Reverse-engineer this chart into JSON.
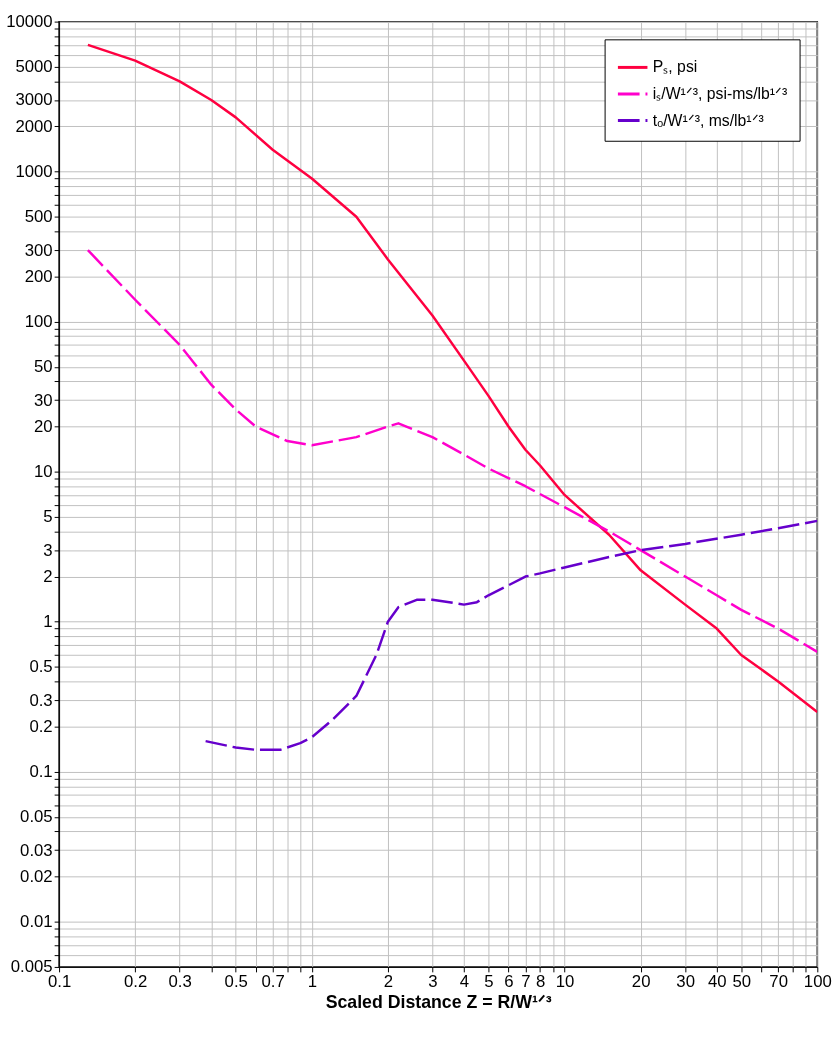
{
  "chart_data": {
    "type": "line",
    "xlabel": "Scaled Distance Z = R/W¹ᐟ³",
    "xlim": [
      0.1,
      100
    ],
    "xticks": [
      0.1,
      0.2,
      0.3,
      {
        "value": 0.4,
        "label": null
      },
      0.5,
      {
        "value": 0.6,
        "label": null
      },
      0.7,
      {
        "value": 0.8,
        "label": null
      },
      {
        "value": 0.9,
        "label": null
      },
      1,
      2,
      3,
      4,
      5,
      6,
      7,
      8,
      {
        "value": 9,
        "label": null
      },
      10,
      20,
      30,
      40,
      50,
      {
        "value": 60,
        "label": null
      },
      70,
      {
        "value": 80,
        "label": null
      },
      {
        "value": 90,
        "label": null
      },
      100
    ],
    "ylim": [
      0.005,
      10000
    ],
    "yticks": [
      0.005,
      {
        "value": 0.006,
        "label": null
      },
      {
        "value": 0.007,
        "label": null
      },
      {
        "value": 0.008,
        "label": null
      },
      {
        "value": 0.009,
        "label": null
      },
      0.01,
      0.02,
      0.03,
      {
        "value": 0.04,
        "label": null
      },
      0.05,
      {
        "value": 0.06,
        "label": null
      },
      {
        "value": 0.07,
        "label": null
      },
      {
        "value": 0.08,
        "label": null
      },
      {
        "value": 0.09,
        "label": null
      },
      0.1,
      0.2,
      0.3,
      {
        "value": 0.4,
        "label": null
      },
      0.5,
      {
        "value": 0.6,
        "label": null
      },
      {
        "value": 0.7,
        "label": null
      },
      {
        "value": 0.8,
        "label": null
      },
      {
        "value": 0.9,
        "label": null
      },
      1,
      2,
      3,
      {
        "value": 4,
        "label": null
      },
      5,
      {
        "value": 6,
        "label": null
      },
      {
        "value": 7,
        "label": null
      },
      {
        "value": 8,
        "label": null
      },
      {
        "value": 9,
        "label": null
      },
      10,
      20,
      30,
      {
        "value": 40,
        "label": null
      },
      50,
      {
        "value": 60,
        "label": null
      },
      {
        "value": 70,
        "label": null
      },
      {
        "value": 80,
        "label": null
      },
      {
        "value": 90,
        "label": null
      },
      100,
      200,
      300,
      {
        "value": 400,
        "label": null
      },
      500,
      {
        "value": 600,
        "label": null
      },
      {
        "value": 700,
        "label": null
      },
      {
        "value": 800,
        "label": null
      },
      {
        "value": 900,
        "label": null
      },
      1000,
      2000,
      3000,
      {
        "value": 4000,
        "label": null
      },
      5000,
      {
        "value": 6000,
        "label": null
      },
      {
        "value": 7000,
        "label": null
      },
      {
        "value": 8000,
        "label": null
      },
      {
        "value": 9000,
        "label": null
      },
      10000
    ],
    "log": "xy",
    "grid": true,
    "legend": "top right",
    "marker": "none",
    "series": [
      {
        "name": "Pₛ, psi",
        "color": "#ff0040",
        "line_style": "solid",
        "x": [
          0.13,
          0.2,
          0.3,
          0.4,
          0.5,
          0.7,
          1,
          1.5,
          2,
          3,
          4,
          5,
          6,
          7,
          8,
          10,
          15,
          20,
          30,
          40,
          50,
          70,
          100
        ],
        "values": [
          7000,
          5500,
          4000,
          3000,
          2300,
          1400,
          900,
          500,
          260,
          110,
          55,
          32,
          20,
          14,
          11,
          7,
          3.8,
          2.2,
          1.3,
          0.9,
          0.6,
          0.4,
          0.25
        ]
      },
      {
        "name": "iₛ/W¹ᐟ³, psi-ms/lb¹ᐟ³",
        "color": "#ff00cc",
        "line_style": "dashed",
        "x": [
          0.13,
          0.2,
          0.3,
          0.4,
          0.5,
          0.6,
          0.8,
          1,
          1.5,
          2,
          2.2,
          3,
          4,
          5,
          7,
          10,
          15,
          20,
          30,
          40,
          50,
          70,
          100
        ],
        "values": [
          300,
          140,
          70,
          38,
          26,
          20,
          16,
          15,
          17,
          20,
          21,
          17,
          13,
          10.5,
          8,
          5.8,
          4,
          3,
          2,
          1.5,
          1.2,
          0.9,
          0.63
        ]
      },
      {
        "name": "tₒ/W¹ᐟ³, ms/lb¹ᐟ³",
        "color": "#6600cc",
        "line_style": "dashed",
        "x": [
          0.38,
          0.5,
          0.6,
          0.75,
          0.9,
          1,
          1.2,
          1.5,
          1.8,
          2,
          2.2,
          2.6,
          3,
          3.5,
          4,
          4.5,
          5,
          6,
          7,
          8,
          10,
          15,
          20,
          30,
          50,
          70,
          100
        ],
        "values": [
          0.16,
          0.145,
          0.14,
          0.14,
          0.155,
          0.17,
          0.22,
          0.32,
          0.6,
          1.0,
          1.25,
          1.4,
          1.4,
          1.35,
          1.3,
          1.35,
          1.5,
          1.75,
          2.0,
          2.1,
          2.3,
          2.7,
          3.0,
          3.3,
          3.8,
          4.2,
          4.7
        ]
      }
    ]
  }
}
